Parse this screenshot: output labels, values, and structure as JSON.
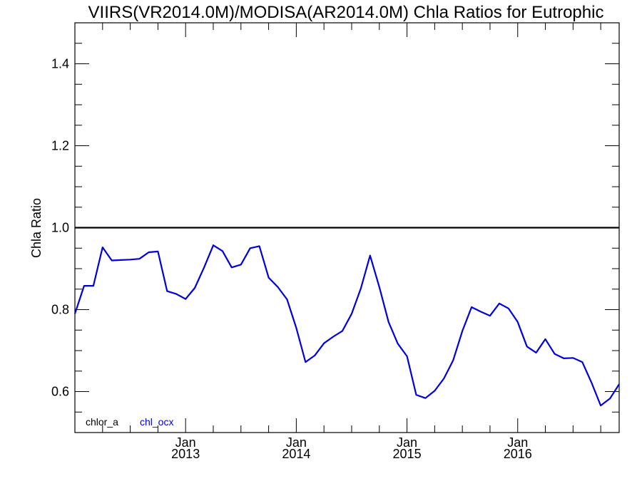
{
  "chart_data": {
    "type": "line",
    "title": "VIIRS(VR2014.0M)/MODISA(AR2014.0M)  Chla Ratios for Eutrophic",
    "xlabel": "",
    "ylabel": "Chla Ratio",
    "ylim": [
      0.5,
      1.5
    ],
    "xlim": [
      "2012-01",
      "2016-12"
    ],
    "yticks": [
      0.6,
      0.8,
      1.0,
      1.2,
      1.4
    ],
    "ytick_labels": [
      "0.6",
      "0.8",
      "1.0",
      "1.2",
      "1.4"
    ],
    "xticks": [
      {
        "date": "2013-01",
        "month": "Jan",
        "year": "2013"
      },
      {
        "date": "2014-01",
        "month": "Jan",
        "year": "2014"
      },
      {
        "date": "2015-01",
        "month": "Jan",
        "year": "2015"
      },
      {
        "date": "2016-01",
        "month": "Jan",
        "year": "2016"
      }
    ],
    "reference_line": {
      "y": 1.0,
      "color": "#000000"
    },
    "legend": {
      "placement": "bottom-left",
      "entries": [
        {
          "label": "chlor_a",
          "color": "#000000"
        },
        {
          "label": "chl_ocx",
          "color": "#0000dd"
        }
      ]
    },
    "grid": false,
    "series": [
      {
        "name": "chl_ocx",
        "color": "#0000dd",
        "x": [
          "2012-01",
          "2012-02",
          "2012-03",
          "2012-04",
          "2012-05",
          "2012-06",
          "2012-07",
          "2012-08",
          "2012-09",
          "2012-10",
          "2012-11",
          "2012-12",
          "2013-01",
          "2013-02",
          "2013-03",
          "2013-04",
          "2013-05",
          "2013-06",
          "2013-07",
          "2013-08",
          "2013-09",
          "2013-10",
          "2013-11",
          "2013-12",
          "2014-01",
          "2014-02",
          "2014-03",
          "2014-04",
          "2014-05",
          "2014-06",
          "2014-07",
          "2014-08",
          "2014-09",
          "2014-10",
          "2014-11",
          "2014-12",
          "2015-01",
          "2015-02",
          "2015-03",
          "2015-04",
          "2015-05",
          "2015-06",
          "2015-07",
          "2015-08",
          "2015-09",
          "2015-10",
          "2015-11",
          "2015-12",
          "2016-01",
          "2016-02",
          "2016-03",
          "2016-04",
          "2016-05",
          "2016-06",
          "2016-07",
          "2016-08",
          "2016-09",
          "2016-10",
          "2016-11",
          "2016-12"
        ],
        "values": [
          0.79,
          0.858,
          0.858,
          0.952,
          0.92,
          0.921,
          0.922,
          0.924,
          0.94,
          0.942,
          0.845,
          0.838,
          0.826,
          0.853,
          0.903,
          0.957,
          0.943,
          0.903,
          0.91,
          0.95,
          0.955,
          0.878,
          0.855,
          0.825,
          0.755,
          0.672,
          0.688,
          0.718,
          0.734,
          0.748,
          0.79,
          0.852,
          0.932,
          0.855,
          0.77,
          0.717,
          0.686,
          0.592,
          0.584,
          0.602,
          0.632,
          0.676,
          0.748,
          0.806,
          0.795,
          0.785,
          0.815,
          0.803,
          0.77,
          0.71,
          0.695,
          0.728,
          0.692,
          0.681,
          0.682,
          0.672,
          0.622,
          0.566,
          0.583,
          0.618
        ]
      }
    ]
  }
}
